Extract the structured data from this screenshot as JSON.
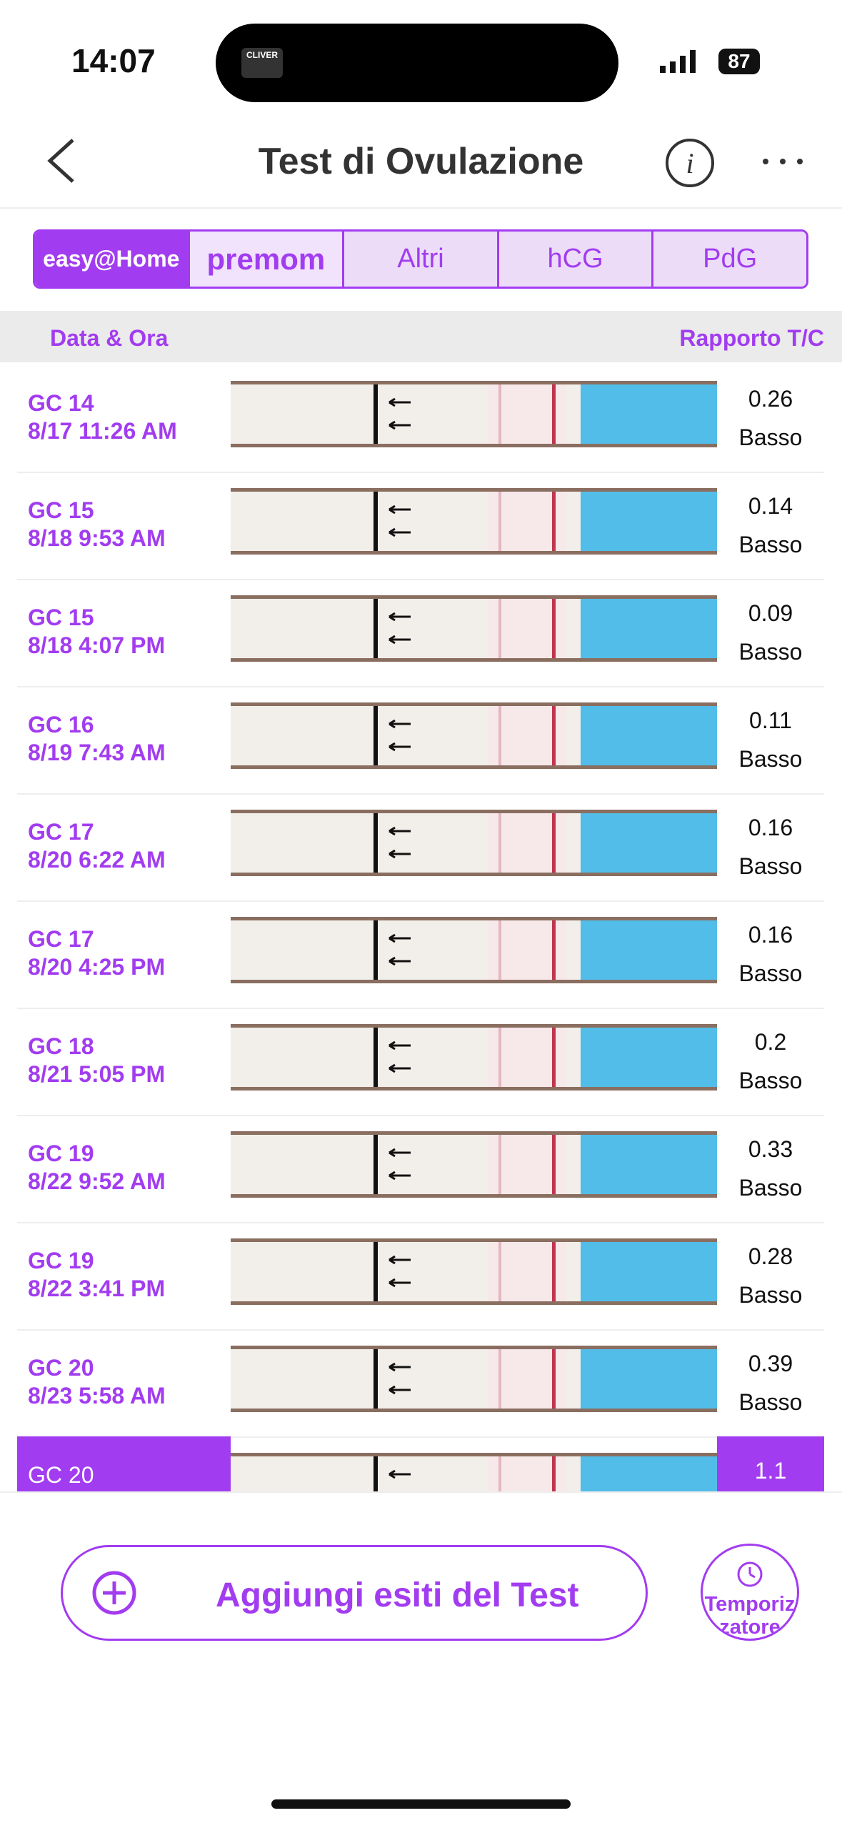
{
  "status_bar": {
    "time": "14:07",
    "battery": "87",
    "island_label": "CLIVER"
  },
  "header": {
    "title": "Test di Ovulazione"
  },
  "tabs": [
    "easy@Home",
    "premom",
    "Altri",
    "hCG",
    "PdG"
  ],
  "table": {
    "columns": [
      "Data & Ora",
      "Rapporto T/C"
    ],
    "rows": [
      {
        "cycle_day": "GC 14",
        "datetime": "8/17 11:26 AM",
        "ratio": 0.26,
        "level": "Basso"
      },
      {
        "cycle_day": "GC 15",
        "datetime": "8/18 9:53 AM",
        "ratio": 0.14,
        "level": "Basso"
      },
      {
        "cycle_day": "GC 15",
        "datetime": "8/18 4:07 PM",
        "ratio": 0.09,
        "level": "Basso"
      },
      {
        "cycle_day": "GC 16",
        "datetime": "8/19 7:43 AM",
        "ratio": 0.11,
        "level": "Basso"
      },
      {
        "cycle_day": "GC 17",
        "datetime": "8/20 6:22 AM",
        "ratio": 0.16,
        "level": "Basso"
      },
      {
        "cycle_day": "GC 17",
        "datetime": "8/20 4:25 PM",
        "ratio": 0.16,
        "level": "Basso"
      },
      {
        "cycle_day": "GC 18",
        "datetime": "8/21 5:05 PM",
        "ratio": 0.2,
        "level": "Basso"
      },
      {
        "cycle_day": "GC 19",
        "datetime": "8/22 9:52 AM",
        "ratio": 0.33,
        "level": "Basso"
      },
      {
        "cycle_day": "GC 19",
        "datetime": "8/22 3:41 PM",
        "ratio": 0.28,
        "level": "Basso"
      },
      {
        "cycle_day": "GC 20",
        "datetime": "8/23 5:58 AM",
        "ratio": 0.39,
        "level": "Basso"
      },
      {
        "cycle_day": "GC 20",
        "ratio": 1.1
      }
    ]
  },
  "add_button": "Aggiungi esiti del Test",
  "timer_button": "Temporizzatore"
}
